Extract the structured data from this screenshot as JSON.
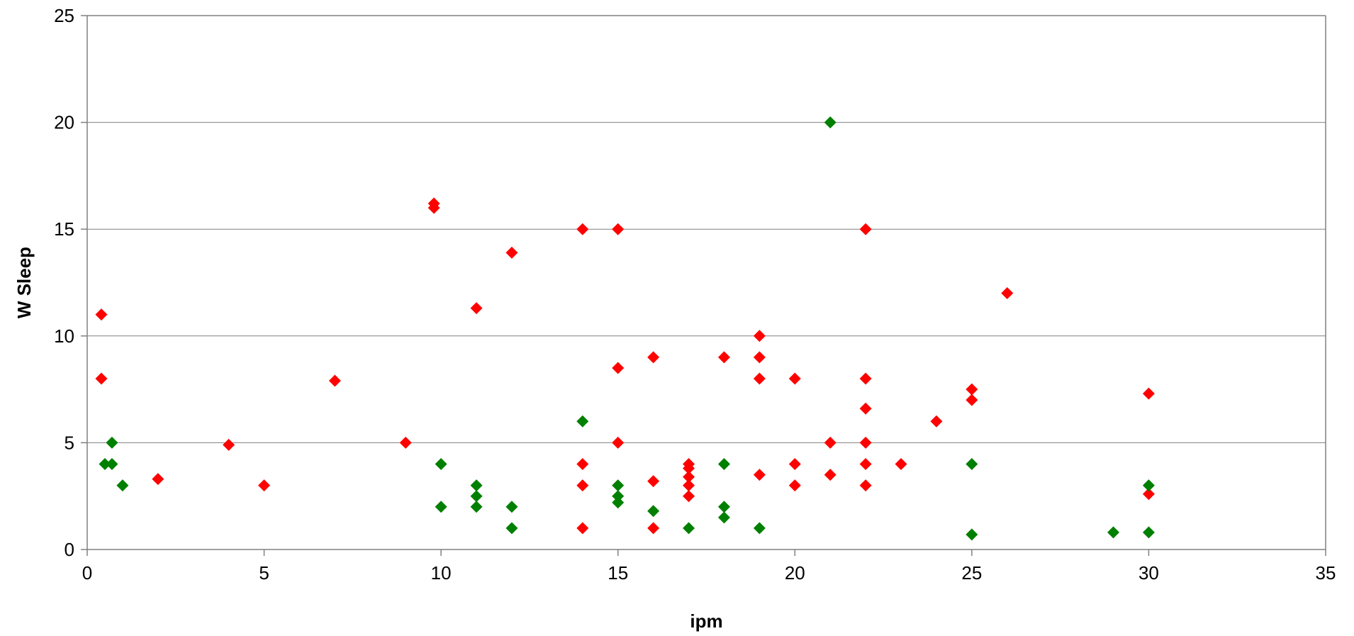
{
  "chart_data": {
    "type": "scatter",
    "title": "",
    "xlabel": "ipm",
    "ylabel": "W Sleep",
    "xlim": [
      0,
      35
    ],
    "ylim": [
      0,
      25
    ],
    "x_ticks": [
      "0",
      "5",
      "10",
      "15",
      "20",
      "25",
      "30",
      "35"
    ],
    "y_ticks": [
      "0",
      "5",
      "10",
      "15",
      "20",
      "25"
    ],
    "grid": "horizontal",
    "legend": "none",
    "marker": "diamond",
    "series": [
      {
        "color": "#ff0000",
        "points": [
          [
            0.4,
            11
          ],
          [
            0.4,
            8
          ],
          [
            2,
            3.3
          ],
          [
            4,
            4.9
          ],
          [
            5,
            3
          ],
          [
            7,
            7.9
          ],
          [
            9,
            5
          ],
          [
            9.8,
            16.2
          ],
          [
            9.8,
            16
          ],
          [
            11,
            11.3
          ],
          [
            12,
            13.9
          ],
          [
            14,
            15
          ],
          [
            14,
            4
          ],
          [
            14,
            3
          ],
          [
            14,
            1
          ],
          [
            15,
            15
          ],
          [
            15,
            8.5
          ],
          [
            15,
            5
          ],
          [
            16,
            9
          ],
          [
            16,
            3.2
          ],
          [
            16,
            1
          ],
          [
            17,
            4
          ],
          [
            17,
            3.8
          ],
          [
            17,
            3.4
          ],
          [
            17,
            3
          ],
          [
            17,
            2.5
          ],
          [
            18,
            9
          ],
          [
            19,
            10
          ],
          [
            19,
            9
          ],
          [
            19,
            8
          ],
          [
            19,
            3.5
          ],
          [
            20,
            8
          ],
          [
            20,
            4
          ],
          [
            20,
            3
          ],
          [
            21,
            5
          ],
          [
            21,
            3.5
          ],
          [
            22,
            15
          ],
          [
            22,
            8
          ],
          [
            22,
            6.6
          ],
          [
            22,
            5
          ],
          [
            22,
            4
          ],
          [
            22,
            3
          ],
          [
            23,
            4
          ],
          [
            24,
            6
          ],
          [
            25,
            7.5
          ],
          [
            25,
            7
          ],
          [
            26,
            12
          ],
          [
            30,
            7.3
          ],
          [
            30,
            2.6
          ]
        ]
      },
      {
        "color": "#008000",
        "points": [
          [
            0.5,
            4
          ],
          [
            0.7,
            4
          ],
          [
            0.7,
            5
          ],
          [
            1,
            3
          ],
          [
            10,
            4
          ],
          [
            10,
            2
          ],
          [
            11,
            3
          ],
          [
            11,
            2.5
          ],
          [
            11,
            2
          ],
          [
            12,
            2
          ],
          [
            12,
            1
          ],
          [
            14,
            6
          ],
          [
            15,
            3
          ],
          [
            15,
            2.5
          ],
          [
            15,
            2.2
          ],
          [
            16,
            1.8
          ],
          [
            17,
            1
          ],
          [
            18,
            4
          ],
          [
            18,
            2
          ],
          [
            18,
            1.5
          ],
          [
            19,
            1
          ],
          [
            21,
            20
          ],
          [
            25,
            4
          ],
          [
            25,
            0.7
          ],
          [
            29,
            0.8
          ],
          [
            30,
            3
          ],
          [
            30,
            0.8
          ]
        ]
      }
    ]
  }
}
